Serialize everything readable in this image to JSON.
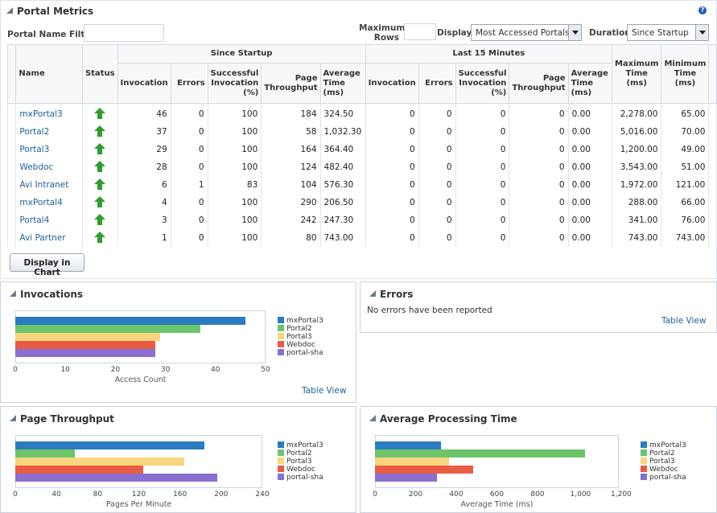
{
  "header": {
    "title": "Portal Metrics",
    "help_icon": "?"
  },
  "filters": {
    "name_filter_label": "Portal Name Filter",
    "name_filter_value": "",
    "max_rows_label_1": "Maximum",
    "max_rows_label_2": "Rows",
    "max_rows_value": "",
    "display_label": "Display",
    "display_value": "Most Accessed Portals",
    "duration_label": "Duration",
    "duration_value": "Since Startup"
  },
  "table": {
    "col_name": "Name",
    "col_status": "Status",
    "group_startup": "Since Startup",
    "group_last15": "Last 15 Minutes",
    "col_invocation": "Invocation",
    "col_errors": "Errors",
    "col_success_1": "Successful",
    "col_success_2": "Invocation",
    "col_success_3": "(%)",
    "col_page_1": "Page",
    "col_page_2": "Throughput",
    "col_avg_1": "Average",
    "col_avg_2": "Time (ms)",
    "col_max_1": "Maximum",
    "col_max_2": "Time (ms)",
    "col_min_1": "Minimum",
    "col_min_2": "Time (ms)",
    "rows": [
      {
        "name": "mxPortal3",
        "inv": "46",
        "err": "0",
        "succ": "100",
        "page": "184",
        "avg": "324.50",
        "inv15": "0",
        "err15": "0",
        "succ15": "0",
        "page15": "0",
        "avg15": "0.00",
        "max": "2,278.00",
        "min": "65.00"
      },
      {
        "name": "Portal2",
        "inv": "37",
        "err": "0",
        "succ": "100",
        "page": "58",
        "avg": "1,032.30",
        "inv15": "0",
        "err15": "0",
        "succ15": "0",
        "page15": "0",
        "avg15": "0.00",
        "max": "5,016.00",
        "min": "70.00"
      },
      {
        "name": "Portal3",
        "inv": "29",
        "err": "0",
        "succ": "100",
        "page": "164",
        "avg": "364.40",
        "inv15": "0",
        "err15": "0",
        "succ15": "0",
        "page15": "0",
        "avg15": "0.00",
        "max": "1,200.00",
        "min": "49.00"
      },
      {
        "name": "Webdoc",
        "inv": "28",
        "err": "0",
        "succ": "100",
        "page": "124",
        "avg": "482.40",
        "inv15": "0",
        "err15": "0",
        "succ15": "0",
        "page15": "0",
        "avg15": "0.00",
        "max": "3,543.00",
        "min": "51.00"
      },
      {
        "name": "Avi Intranet",
        "inv": "6",
        "err": "1",
        "succ": "83",
        "page": "104",
        "avg": "576.30",
        "inv15": "0",
        "err15": "0",
        "succ15": "0",
        "page15": "0",
        "avg15": "0.00",
        "max": "1,972.00",
        "min": "121.00"
      },
      {
        "name": "mxPortal4",
        "inv": "4",
        "err": "0",
        "succ": "100",
        "page": "290",
        "avg": "206.50",
        "inv15": "0",
        "err15": "0",
        "succ15": "0",
        "page15": "0",
        "avg15": "0.00",
        "max": "288.00",
        "min": "66.00"
      },
      {
        "name": "Portal4",
        "inv": "3",
        "err": "0",
        "succ": "100",
        "page": "242",
        "avg": "247.30",
        "inv15": "0",
        "err15": "0",
        "succ15": "0",
        "page15": "0",
        "avg15": "0.00",
        "max": "341.00",
        "min": "76.00"
      },
      {
        "name": "Avi Partner",
        "inv": "1",
        "err": "0",
        "succ": "100",
        "page": "80",
        "avg": "743.00",
        "inv15": "0",
        "err15": "0",
        "succ15": "0",
        "page15": "0",
        "avg15": "0.00",
        "max": "743.00",
        "min": "743.00"
      }
    ]
  },
  "buttons": {
    "display_in_chart": "Display in Chart",
    "table_view": "Table View"
  },
  "errors_panel": {
    "title": "Errors",
    "message": "No errors have been reported"
  },
  "colors": {
    "s0": "#2a7bbf",
    "s1": "#6cc56a",
    "s2": "#f8d57e",
    "s3": "#e85c43",
    "s4": "#8a6fd0"
  },
  "chart_data": [
    {
      "id": "inv",
      "type": "bar",
      "title": "Invocations",
      "xlabel": "Access Count",
      "categories": [
        "mxPortal3",
        "Portal2",
        "Portal3",
        "Webdoc",
        "portal-sha"
      ],
      "values": [
        46,
        37,
        29,
        28,
        28
      ],
      "xlim": [
        0,
        50
      ],
      "ticks": [
        "0",
        "10",
        "20",
        "30",
        "40",
        "50"
      ]
    },
    {
      "id": "pt",
      "type": "bar",
      "title": "Page Throughput",
      "xlabel": "Pages Per Minute",
      "categories": [
        "mxPortal3",
        "Portal2",
        "Portal3",
        "Webdoc",
        "portal-sha"
      ],
      "values": [
        184,
        58,
        164,
        124,
        196
      ],
      "xlim": [
        0,
        240
      ],
      "ticks": [
        "0",
        "40",
        "80",
        "120",
        "160",
        "200",
        "240"
      ]
    },
    {
      "id": "apt",
      "type": "bar",
      "title": "Average Processing Time",
      "xlabel": "Average Time (ms)",
      "categories": [
        "mxPortal3",
        "Portal2",
        "Portal3",
        "Webdoc",
        "portal-sha"
      ],
      "values": [
        324.5,
        1032.3,
        364.4,
        482.4,
        306
      ],
      "xlim": [
        0,
        1200
      ],
      "ticks": [
        "0",
        "200",
        "400",
        "600",
        "800",
        "1,000",
        "1,200"
      ]
    }
  ]
}
